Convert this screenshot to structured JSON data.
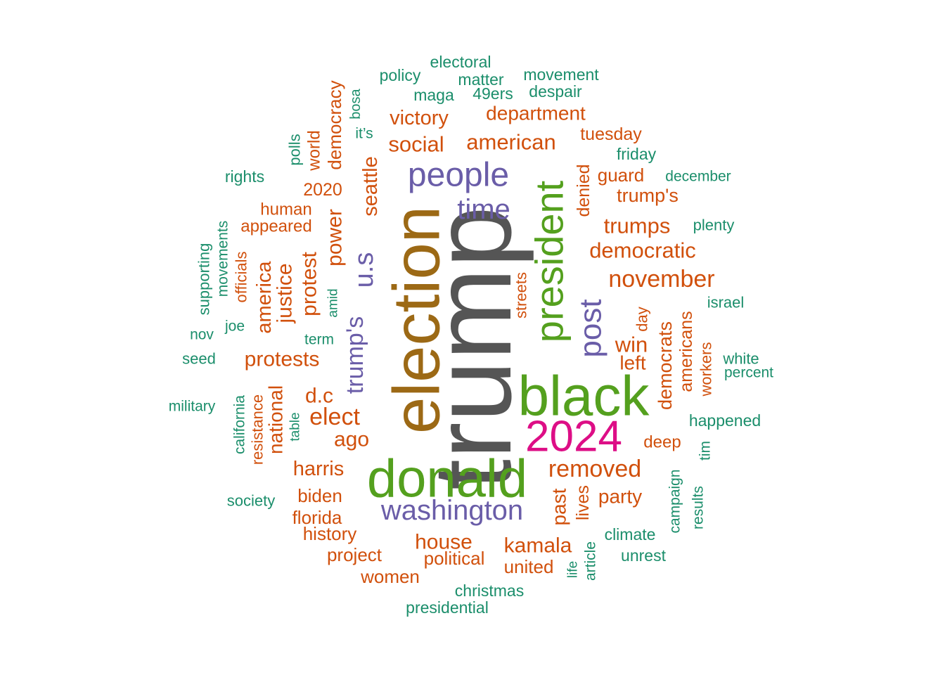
{
  "colors": {
    "gray": "#555555",
    "brown": "#9C6915",
    "green": "#54A01E",
    "magenta": "#DD0E86",
    "purple": "#6A5DA8",
    "orange": "#D1500C",
    "teal": "#1B8E6B"
  },
  "words": [
    {
      "text": "trump",
      "color": "gray"
    },
    {
      "text": "election",
      "color": "brown"
    },
    {
      "text": "donald",
      "color": "green"
    },
    {
      "text": "black",
      "color": "green"
    },
    {
      "text": "president",
      "color": "green"
    },
    {
      "text": "2024",
      "color": "magenta"
    },
    {
      "text": "people",
      "color": "purple"
    },
    {
      "text": "washington",
      "color": "purple"
    },
    {
      "text": "time",
      "color": "purple"
    },
    {
      "text": "post",
      "color": "purple"
    },
    {
      "text": "u.s",
      "color": "purple"
    },
    {
      "text": "trump's",
      "color": "purple"
    },
    {
      "text": "november",
      "color": "orange"
    },
    {
      "text": "democratic",
      "color": "orange"
    },
    {
      "text": "trumps",
      "color": "orange"
    },
    {
      "text": "trump's",
      "color": "orange"
    },
    {
      "text": "removed",
      "color": "orange"
    },
    {
      "text": "win",
      "color": "orange"
    },
    {
      "text": "left",
      "color": "orange"
    },
    {
      "text": "democrats",
      "color": "orange"
    },
    {
      "text": "americans",
      "color": "orange"
    },
    {
      "text": "workers",
      "color": "orange"
    },
    {
      "text": "day",
      "color": "orange"
    },
    {
      "text": "deep",
      "color": "orange"
    },
    {
      "text": "party",
      "color": "orange"
    },
    {
      "text": "kamala",
      "color": "orange"
    },
    {
      "text": "united",
      "color": "orange"
    },
    {
      "text": "past",
      "color": "orange"
    },
    {
      "text": "lives",
      "color": "orange"
    },
    {
      "text": "streets",
      "color": "orange"
    },
    {
      "text": "denied",
      "color": "orange"
    },
    {
      "text": "guard",
      "color": "orange"
    },
    {
      "text": "tuesday",
      "color": "orange"
    },
    {
      "text": "department",
      "color": "orange"
    },
    {
      "text": "american",
      "color": "orange"
    },
    {
      "text": "victory",
      "color": "orange"
    },
    {
      "text": "social",
      "color": "orange"
    },
    {
      "text": "seattle",
      "color": "orange"
    },
    {
      "text": "democracy",
      "color": "orange"
    },
    {
      "text": "world",
      "color": "orange"
    },
    {
      "text": "2020",
      "color": "orange"
    },
    {
      "text": "human",
      "color": "orange"
    },
    {
      "text": "appeared",
      "color": "orange"
    },
    {
      "text": "power",
      "color": "orange"
    },
    {
      "text": "protest",
      "color": "orange"
    },
    {
      "text": "justice",
      "color": "orange"
    },
    {
      "text": "america",
      "color": "orange"
    },
    {
      "text": "officials",
      "color": "orange"
    },
    {
      "text": "protests",
      "color": "orange"
    },
    {
      "text": "elect",
      "color": "orange"
    },
    {
      "text": "d.c",
      "color": "orange"
    },
    {
      "text": "ago",
      "color": "orange"
    },
    {
      "text": "harris",
      "color": "orange"
    },
    {
      "text": "national",
      "color": "orange"
    },
    {
      "text": "resistance",
      "color": "orange"
    },
    {
      "text": "biden",
      "color": "orange"
    },
    {
      "text": "florida",
      "color": "orange"
    },
    {
      "text": "history",
      "color": "orange"
    },
    {
      "text": "project",
      "color": "orange"
    },
    {
      "text": "women",
      "color": "orange"
    },
    {
      "text": "house",
      "color": "orange"
    },
    {
      "text": "political",
      "color": "orange"
    },
    {
      "text": "electoral",
      "color": "teal"
    },
    {
      "text": "policy",
      "color": "teal"
    },
    {
      "text": "matter",
      "color": "teal"
    },
    {
      "text": "movement",
      "color": "teal"
    },
    {
      "text": "maga",
      "color": "teal"
    },
    {
      "text": "49ers",
      "color": "teal"
    },
    {
      "text": "despair",
      "color": "teal"
    },
    {
      "text": "bosa",
      "color": "teal"
    },
    {
      "text": "it’s",
      "color": "teal"
    },
    {
      "text": "polls",
      "color": "teal"
    },
    {
      "text": "rights",
      "color": "teal"
    },
    {
      "text": "friday",
      "color": "teal"
    },
    {
      "text": "december",
      "color": "teal"
    },
    {
      "text": "plenty",
      "color": "teal"
    },
    {
      "text": "israel",
      "color": "teal"
    },
    {
      "text": "white",
      "color": "teal"
    },
    {
      "text": "percent",
      "color": "teal"
    },
    {
      "text": "happened",
      "color": "teal"
    },
    {
      "text": "tim",
      "color": "teal"
    },
    {
      "text": "campaign",
      "color": "teal"
    },
    {
      "text": "results",
      "color": "teal"
    },
    {
      "text": "climate",
      "color": "teal"
    },
    {
      "text": "unrest",
      "color": "teal"
    },
    {
      "text": "article",
      "color": "teal"
    },
    {
      "text": "life",
      "color": "teal"
    },
    {
      "text": "christmas",
      "color": "teal"
    },
    {
      "text": "presidential",
      "color": "teal"
    },
    {
      "text": "amid",
      "color": "teal"
    },
    {
      "text": "term",
      "color": "teal"
    },
    {
      "text": "supporting",
      "color": "teal"
    },
    {
      "text": "movements",
      "color": "teal"
    },
    {
      "text": "joe",
      "color": "teal"
    },
    {
      "text": "nov",
      "color": "teal"
    },
    {
      "text": "seed",
      "color": "teal"
    },
    {
      "text": "military",
      "color": "teal"
    },
    {
      "text": "california",
      "color": "teal"
    },
    {
      "text": "table",
      "color": "teal"
    },
    {
      "text": "society",
      "color": "teal"
    }
  ]
}
